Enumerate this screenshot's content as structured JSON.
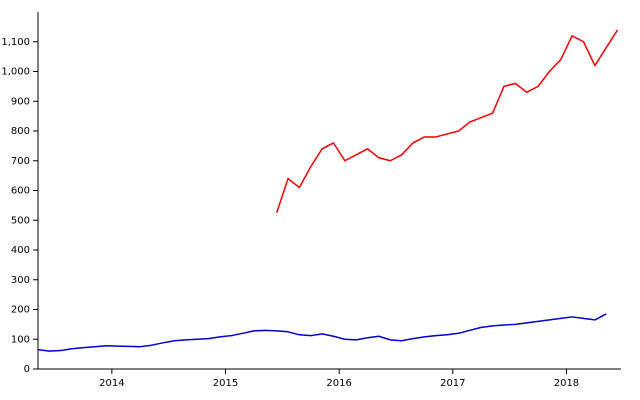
{
  "chart_data": {
    "type": "line",
    "x": [
      2013.35,
      2013.45,
      2013.55,
      2013.65,
      2013.75,
      2013.85,
      2013.95,
      2014.05,
      2014.15,
      2014.25,
      2014.35,
      2014.45,
      2014.55,
      2014.65,
      2014.75,
      2014.85,
      2014.95,
      2015.05,
      2015.15,
      2015.25,
      2015.35,
      2015.45,
      2015.55,
      2015.65,
      2015.75,
      2015.85,
      2015.95,
      2016.05,
      2016.15,
      2016.25,
      2016.35,
      2016.45,
      2016.55,
      2016.65,
      2016.75,
      2016.85,
      2016.95,
      2017.05,
      2017.15,
      2017.25,
      2017.35,
      2017.45,
      2017.55,
      2017.65,
      2017.75,
      2017.85,
      2017.95,
      2018.05,
      2018.15,
      2018.25,
      2018.35,
      2018.45
    ],
    "series": [
      {
        "color": "#0000cc",
        "values": [
          65,
          60,
          62,
          68,
          72,
          75,
          78,
          77,
          76,
          75,
          80,
          88,
          95,
          98,
          100,
          102,
          108,
          112,
          120,
          128,
          130,
          128,
          125,
          115,
          112,
          118,
          110,
          100,
          98,
          105,
          110,
          98,
          95,
          102,
          108,
          112,
          115,
          120,
          130,
          140,
          145,
          148,
          150,
          155,
          160,
          165,
          170,
          175,
          170,
          165,
          185,
          null
        ]
      },
      {
        "color": "#ee0000",
        "values": [
          null,
          null,
          null,
          null,
          null,
          null,
          null,
          null,
          null,
          null,
          null,
          null,
          null,
          null,
          null,
          null,
          null,
          null,
          null,
          null,
          null,
          525,
          640,
          610,
          680,
          740,
          760,
          700,
          720,
          740,
          710,
          700,
          720,
          760,
          780,
          780,
          790,
          800,
          830,
          845,
          860,
          950,
          960,
          930,
          950,
          1000,
          1040,
          1120,
          1100,
          1020,
          1080,
          1140
        ]
      }
    ],
    "xlim": [
      2013.35,
      2018.48
    ],
    "xticks": [
      2014,
      2015,
      2016,
      2017,
      2018
    ],
    "ylim": [
      0,
      1200
    ],
    "yticks": [
      0,
      100,
      200,
      300,
      400,
      500,
      600,
      700,
      800,
      900,
      {
        "value": 1000,
        "label": "1,000"
      },
      {
        "value": 1100,
        "label": "1,100"
      }
    ]
  }
}
